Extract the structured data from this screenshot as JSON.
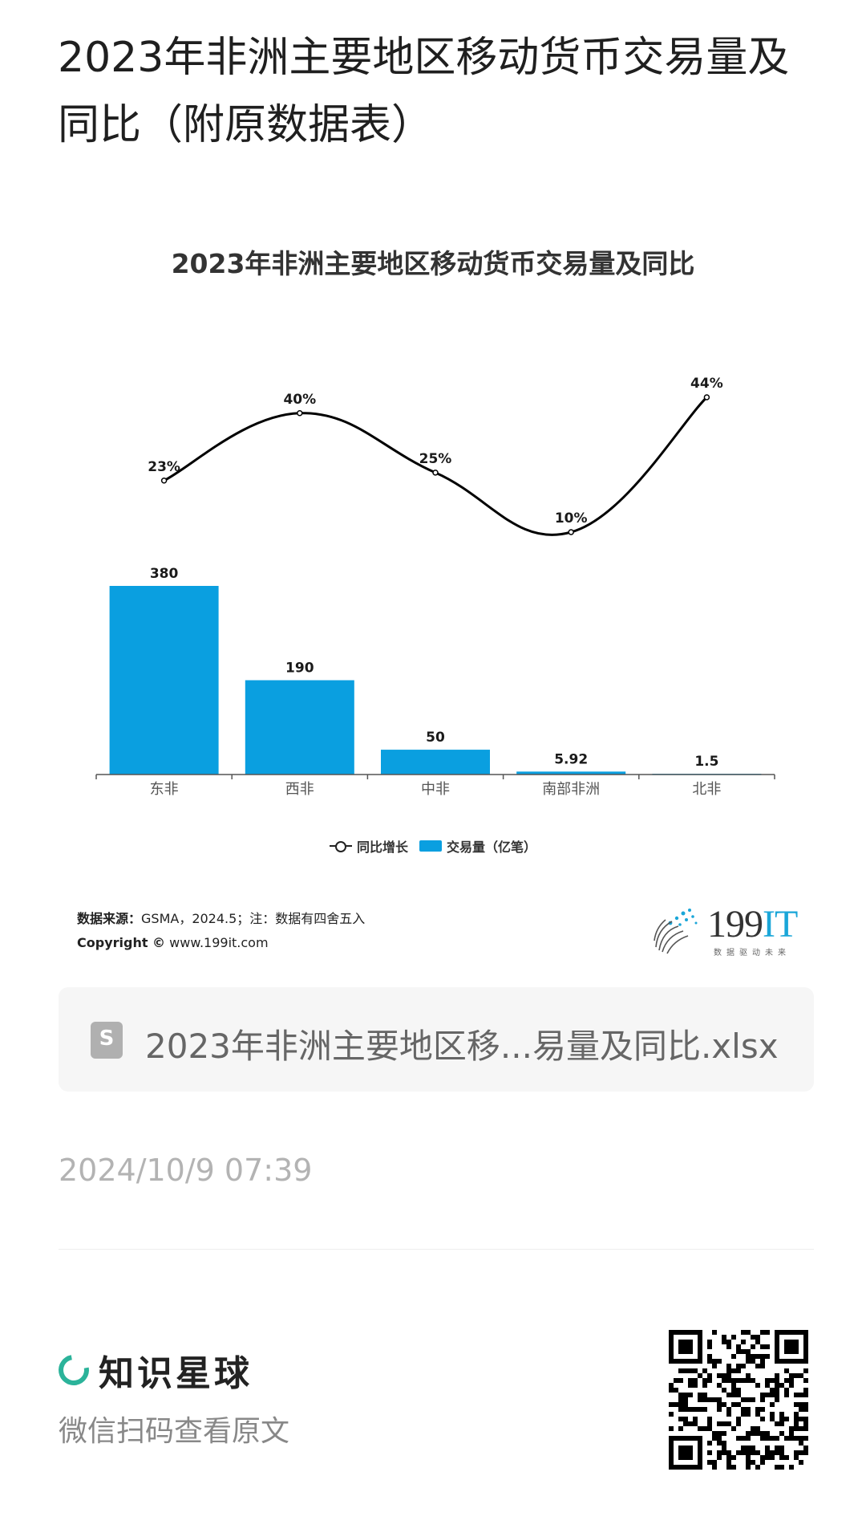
{
  "post": {
    "title": "2023年非洲主要地区移动货币交易量及同比（附原数据表）"
  },
  "chart_data": {
    "type": "bar+line",
    "title": "2023年非洲主要地区移动货币交易量及同比",
    "categories": [
      "东非",
      "西非",
      "中非",
      "南部非洲",
      "北非"
    ],
    "series": [
      {
        "name": "交易量（亿笔）",
        "type": "bar",
        "values": [
          380,
          190,
          50,
          5.92,
          1.5
        ],
        "labels": [
          "380",
          "190",
          "50",
          "5.92",
          "1.5"
        ],
        "color": "#0a9fe0"
      },
      {
        "name": "同比增长",
        "type": "line",
        "values": [
          23,
          40,
          25,
          10,
          44
        ],
        "labels": [
          "23%",
          "40%",
          "25%",
          "10%",
          "44%"
        ],
        "color": "#000000",
        "smooth": true
      }
    ],
    "legend": {
      "position": "bottom",
      "items": [
        "同比增长",
        "交易量（亿笔）"
      ]
    },
    "grid": false
  },
  "source": {
    "label": "数据来源：",
    "text": "GSMA，2024.5；注：数据有四舍五入",
    "copyright_label": "Copyright ©",
    "copyright_text": " www.199it.com"
  },
  "logo": {
    "main": "199",
    "accent": "IT",
    "sub": "数据驱动未来"
  },
  "attachment": {
    "file_name": "2023年非洲主要地区移...易量及同比.xlsx",
    "icon": "spreadsheet-file-icon"
  },
  "date": "2024/10/9 07:39",
  "footer": {
    "brand_name": "知识星球",
    "brand_color": "#2bb39a",
    "scan_tip": "微信扫码查看原文"
  }
}
